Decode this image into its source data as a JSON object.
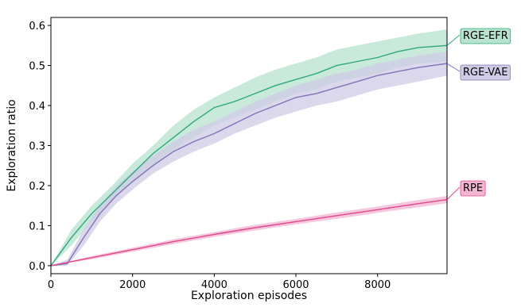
{
  "chart_data": {
    "type": "line",
    "xlabel": "Exploration episodes",
    "ylabel": "Exploration ratio",
    "xlim": [
      0,
      9700
    ],
    "ylim": [
      -0.02,
      0.62
    ],
    "xticks": [
      0,
      2000,
      4000,
      6000,
      8000
    ],
    "xtick_labels": [
      "0",
      "2000",
      "4000",
      "6000",
      "8000"
    ],
    "yticks": [
      0.0,
      0.1,
      0.2,
      0.3,
      0.4,
      0.5,
      0.6
    ],
    "ytick_labels": [
      "0.0",
      "0.1",
      "0.2",
      "0.3",
      "0.4",
      "0.5",
      "0.6"
    ],
    "grid": false,
    "legend": "right, inline end labels",
    "series": [
      {
        "name": "RGE-EFR",
        "color": "#2ca87f",
        "fill": "#b7e3cf",
        "x": [
          0,
          500,
          1000,
          1500,
          2000,
          2500,
          3000,
          3500,
          4000,
          4500,
          5000,
          5500,
          6000,
          6500,
          7000,
          7500,
          8000,
          8500,
          9000,
          9700
        ],
        "values": [
          0.0,
          0.07,
          0.13,
          0.18,
          0.23,
          0.28,
          0.32,
          0.36,
          0.395,
          0.41,
          0.43,
          0.45,
          0.465,
          0.48,
          0.5,
          0.51,
          0.52,
          0.535,
          0.545,
          0.55
        ],
        "lower": [
          0.0,
          0.05,
          0.11,
          0.16,
          0.21,
          0.25,
          0.29,
          0.32,
          0.35,
          0.37,
          0.39,
          0.41,
          0.43,
          0.44,
          0.46,
          0.47,
          0.48,
          0.495,
          0.505,
          0.51
        ],
        "upper": [
          0.0,
          0.09,
          0.15,
          0.2,
          0.255,
          0.3,
          0.35,
          0.39,
          0.42,
          0.445,
          0.47,
          0.49,
          0.505,
          0.52,
          0.54,
          0.55,
          0.56,
          0.57,
          0.58,
          0.59
        ]
      },
      {
        "name": "RGE-VAE",
        "color": "#7f75b8",
        "fill": "#cfcbe6",
        "x": [
          0,
          400,
          800,
          1200,
          1600,
          2000,
          2500,
          3000,
          3500,
          4000,
          4500,
          5000,
          5500,
          6000,
          6500,
          7000,
          7500,
          8000,
          8500,
          9000,
          9700
        ],
        "values": [
          0.0,
          0.005,
          0.07,
          0.13,
          0.175,
          0.21,
          0.25,
          0.285,
          0.31,
          0.33,
          0.355,
          0.38,
          0.4,
          0.42,
          0.43,
          0.445,
          0.46,
          0.475,
          0.485,
          0.495,
          0.505
        ],
        "lower": [
          0.0,
          0.0,
          0.05,
          0.11,
          0.155,
          0.19,
          0.23,
          0.26,
          0.285,
          0.305,
          0.33,
          0.35,
          0.37,
          0.385,
          0.4,
          0.41,
          0.425,
          0.44,
          0.45,
          0.46,
          0.475
        ],
        "upper": [
          0.0,
          0.015,
          0.09,
          0.15,
          0.2,
          0.235,
          0.275,
          0.31,
          0.34,
          0.36,
          0.385,
          0.41,
          0.43,
          0.45,
          0.465,
          0.48,
          0.49,
          0.505,
          0.515,
          0.525,
          0.535
        ]
      },
      {
        "name": "RPE",
        "color": "#e0478d",
        "fill": "#f3b4d1",
        "x": [
          0,
          1000,
          2000,
          3000,
          4000,
          5000,
          6000,
          7000,
          8000,
          9000,
          9700
        ],
        "values": [
          0.0,
          0.02,
          0.04,
          0.06,
          0.078,
          0.095,
          0.11,
          0.125,
          0.14,
          0.155,
          0.165
        ],
        "lower": [
          0.0,
          0.016,
          0.035,
          0.054,
          0.072,
          0.088,
          0.103,
          0.117,
          0.132,
          0.146,
          0.156
        ],
        "upper": [
          0.0,
          0.024,
          0.045,
          0.066,
          0.084,
          0.102,
          0.117,
          0.133,
          0.148,
          0.164,
          0.174
        ]
      }
    ]
  }
}
